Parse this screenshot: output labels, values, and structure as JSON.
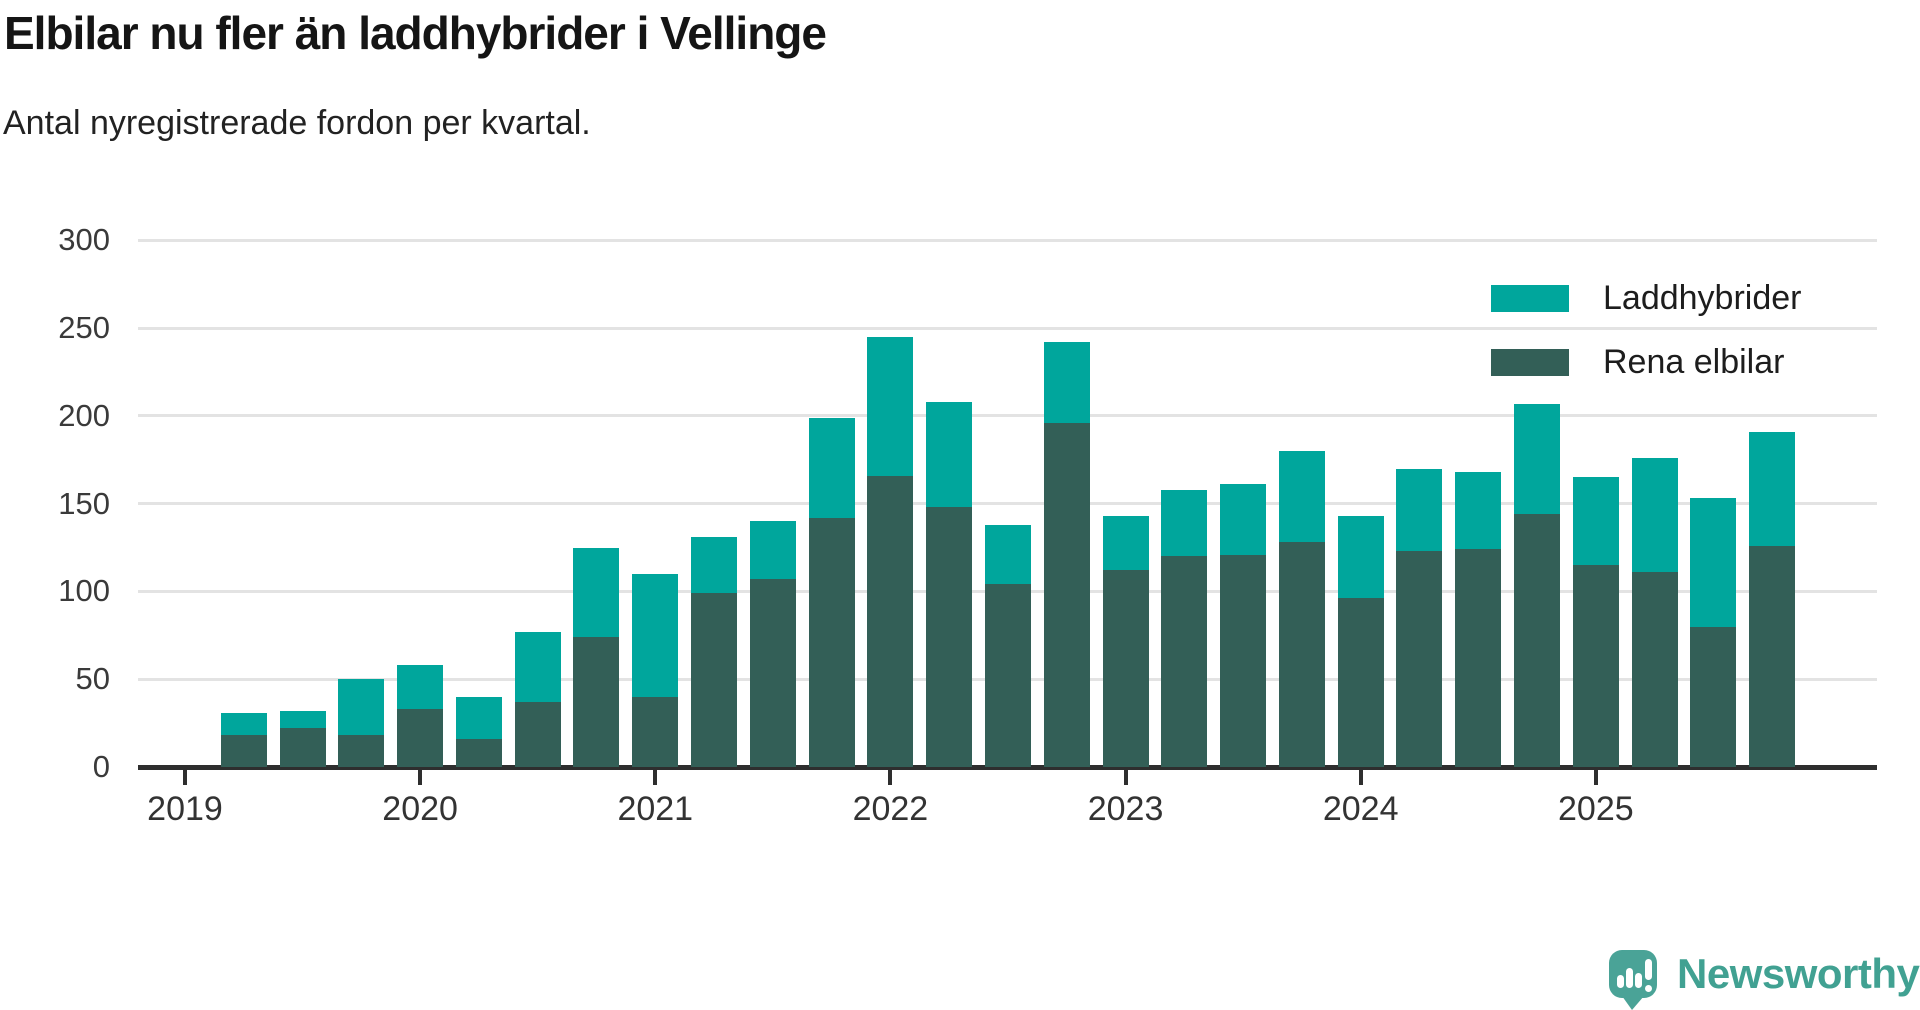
{
  "header": {
    "title": "Elbilar nu fler än laddhybrider i Vellinge",
    "subtitle": "Antal nyregistrerade fordon per kvartal."
  },
  "footer": {
    "brand": "Newsworthy"
  },
  "colors": {
    "laddhybrider": "#00a69c",
    "rena_elbilar": "#335f57",
    "gridline": "#e3e3e3",
    "axis": "#2e2e2e",
    "logo": "#41a192"
  },
  "chart_data": {
    "type": "bar",
    "stacked": true,
    "title": "Elbilar nu fler än laddhybrider i Vellinge",
    "subtitle": "Antal nyregistrerade fordon per kvartal.",
    "categories": [
      "2019 Q2",
      "2019 Q3",
      "2019 Q4",
      "2020 Q1",
      "2020 Q2",
      "2020 Q3",
      "2020 Q4",
      "2021 Q1",
      "2021 Q2",
      "2021 Q3",
      "2021 Q4",
      "2022 Q1",
      "2022 Q2",
      "2022 Q3",
      "2022 Q4",
      "2023 Q1",
      "2023 Q2",
      "2023 Q3",
      "2023 Q4",
      "2024 Q1",
      "2024 Q2",
      "2024 Q3",
      "2024 Q4",
      "2025 Q1",
      "2025 Q2",
      "2025 Q3",
      "2025 Q4"
    ],
    "series": [
      {
        "name": "Laddhybrider",
        "color": "#00a69c",
        "stack_position": "top",
        "values": [
          13,
          10,
          32,
          25,
          24,
          40,
          51,
          70,
          32,
          33,
          57,
          79,
          60,
          34,
          46,
          31,
          38,
          40,
          52,
          47,
          47,
          44,
          63,
          50,
          65,
          73,
          65
        ]
      },
      {
        "name": "Rena elbilar",
        "color": "#335f57",
        "stack_position": "bottom",
        "values": [
          18,
          22,
          18,
          33,
          16,
          37,
          74,
          40,
          99,
          107,
          142,
          166,
          148,
          104,
          196,
          112,
          120,
          121,
          128,
          96,
          123,
          124,
          144,
          115,
          111,
          80,
          126
        ]
      }
    ],
    "totals": [
      31,
      32,
      50,
      58,
      40,
      77,
      125,
      110,
      131,
      140,
      199,
      245,
      208,
      138,
      242,
      143,
      158,
      161,
      180,
      143,
      170,
      168,
      207,
      165,
      176,
      153,
      191
    ],
    "xlabel": "",
    "ylabel": "",
    "ylim": [
      0,
      300
    ],
    "yticks": [
      0,
      50,
      100,
      150,
      200,
      250,
      300
    ],
    "xticks": [
      "2019",
      "2020",
      "2021",
      "2022",
      "2023",
      "2024",
      "2025"
    ],
    "grid": "horizontal",
    "legend_position": "top-right"
  }
}
